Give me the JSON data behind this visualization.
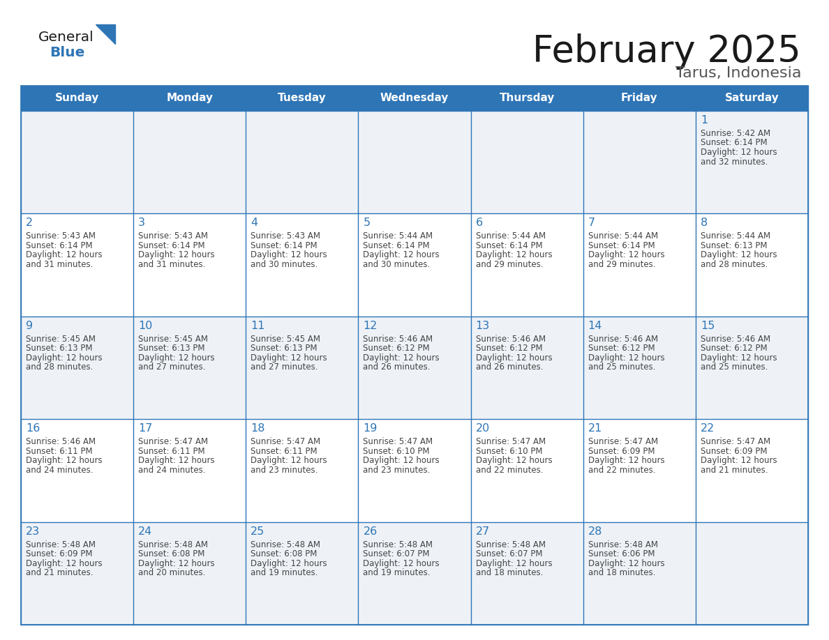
{
  "title": "February 2025",
  "subtitle": "Tarus, Indonesia",
  "days_of_week": [
    "Sunday",
    "Monday",
    "Tuesday",
    "Wednesday",
    "Thursday",
    "Friday",
    "Saturday"
  ],
  "header_bg_color": "#2E75B6",
  "header_text_color": "#FFFFFF",
  "border_color": "#2E75B6",
  "day_number_color": "#2E75B6",
  "info_text_color": "#555555",
  "title_color": "#1a1a1a",
  "subtitle_color": "#555555",
  "blue_color": "#2E75B6",
  "row_alt_color": "#EEF2F7",
  "calendar_data": [
    [
      null,
      null,
      null,
      null,
      null,
      null,
      {
        "day": 1,
        "sunrise": "5:42 AM",
        "sunset": "6:14 PM",
        "daylight": "12 hours",
        "daylight2": "and 32 minutes."
      }
    ],
    [
      {
        "day": 2,
        "sunrise": "5:43 AM",
        "sunset": "6:14 PM",
        "daylight": "12 hours",
        "daylight2": "and 31 minutes."
      },
      {
        "day": 3,
        "sunrise": "5:43 AM",
        "sunset": "6:14 PM",
        "daylight": "12 hours",
        "daylight2": "and 31 minutes."
      },
      {
        "day": 4,
        "sunrise": "5:43 AM",
        "sunset": "6:14 PM",
        "daylight": "12 hours",
        "daylight2": "and 30 minutes."
      },
      {
        "day": 5,
        "sunrise": "5:44 AM",
        "sunset": "6:14 PM",
        "daylight": "12 hours",
        "daylight2": "and 30 minutes."
      },
      {
        "day": 6,
        "sunrise": "5:44 AM",
        "sunset": "6:14 PM",
        "daylight": "12 hours",
        "daylight2": "and 29 minutes."
      },
      {
        "day": 7,
        "sunrise": "5:44 AM",
        "sunset": "6:14 PM",
        "daylight": "12 hours",
        "daylight2": "and 29 minutes."
      },
      {
        "day": 8,
        "sunrise": "5:44 AM",
        "sunset": "6:13 PM",
        "daylight": "12 hours",
        "daylight2": "and 28 minutes."
      }
    ],
    [
      {
        "day": 9,
        "sunrise": "5:45 AM",
        "sunset": "6:13 PM",
        "daylight": "12 hours",
        "daylight2": "and 28 minutes."
      },
      {
        "day": 10,
        "sunrise": "5:45 AM",
        "sunset": "6:13 PM",
        "daylight": "12 hours",
        "daylight2": "and 27 minutes."
      },
      {
        "day": 11,
        "sunrise": "5:45 AM",
        "sunset": "6:13 PM",
        "daylight": "12 hours",
        "daylight2": "and 27 minutes."
      },
      {
        "day": 12,
        "sunrise": "5:46 AM",
        "sunset": "6:12 PM",
        "daylight": "12 hours",
        "daylight2": "and 26 minutes."
      },
      {
        "day": 13,
        "sunrise": "5:46 AM",
        "sunset": "6:12 PM",
        "daylight": "12 hours",
        "daylight2": "and 26 minutes."
      },
      {
        "day": 14,
        "sunrise": "5:46 AM",
        "sunset": "6:12 PM",
        "daylight": "12 hours",
        "daylight2": "and 25 minutes."
      },
      {
        "day": 15,
        "sunrise": "5:46 AM",
        "sunset": "6:12 PM",
        "daylight": "12 hours",
        "daylight2": "and 25 minutes."
      }
    ],
    [
      {
        "day": 16,
        "sunrise": "5:46 AM",
        "sunset": "6:11 PM",
        "daylight": "12 hours",
        "daylight2": "and 24 minutes."
      },
      {
        "day": 17,
        "sunrise": "5:47 AM",
        "sunset": "6:11 PM",
        "daylight": "12 hours",
        "daylight2": "and 24 minutes."
      },
      {
        "day": 18,
        "sunrise": "5:47 AM",
        "sunset": "6:11 PM",
        "daylight": "12 hours",
        "daylight2": "and 23 minutes."
      },
      {
        "day": 19,
        "sunrise": "5:47 AM",
        "sunset": "6:10 PM",
        "daylight": "12 hours",
        "daylight2": "and 23 minutes."
      },
      {
        "day": 20,
        "sunrise": "5:47 AM",
        "sunset": "6:10 PM",
        "daylight": "12 hours",
        "daylight2": "and 22 minutes."
      },
      {
        "day": 21,
        "sunrise": "5:47 AM",
        "sunset": "6:09 PM",
        "daylight": "12 hours",
        "daylight2": "and 22 minutes."
      },
      {
        "day": 22,
        "sunrise": "5:47 AM",
        "sunset": "6:09 PM",
        "daylight": "12 hours",
        "daylight2": "and 21 minutes."
      }
    ],
    [
      {
        "day": 23,
        "sunrise": "5:48 AM",
        "sunset": "6:09 PM",
        "daylight": "12 hours",
        "daylight2": "and 21 minutes."
      },
      {
        "day": 24,
        "sunrise": "5:48 AM",
        "sunset": "6:08 PM",
        "daylight": "12 hours",
        "daylight2": "and 20 minutes."
      },
      {
        "day": 25,
        "sunrise": "5:48 AM",
        "sunset": "6:08 PM",
        "daylight": "12 hours",
        "daylight2": "and 19 minutes."
      },
      {
        "day": 26,
        "sunrise": "5:48 AM",
        "sunset": "6:07 PM",
        "daylight": "12 hours",
        "daylight2": "and 19 minutes."
      },
      {
        "day": 27,
        "sunrise": "5:48 AM",
        "sunset": "6:07 PM",
        "daylight": "12 hours",
        "daylight2": "and 18 minutes."
      },
      {
        "day": 28,
        "sunrise": "5:48 AM",
        "sunset": "6:06 PM",
        "daylight": "12 hours",
        "daylight2": "and 18 minutes."
      },
      null
    ]
  ]
}
